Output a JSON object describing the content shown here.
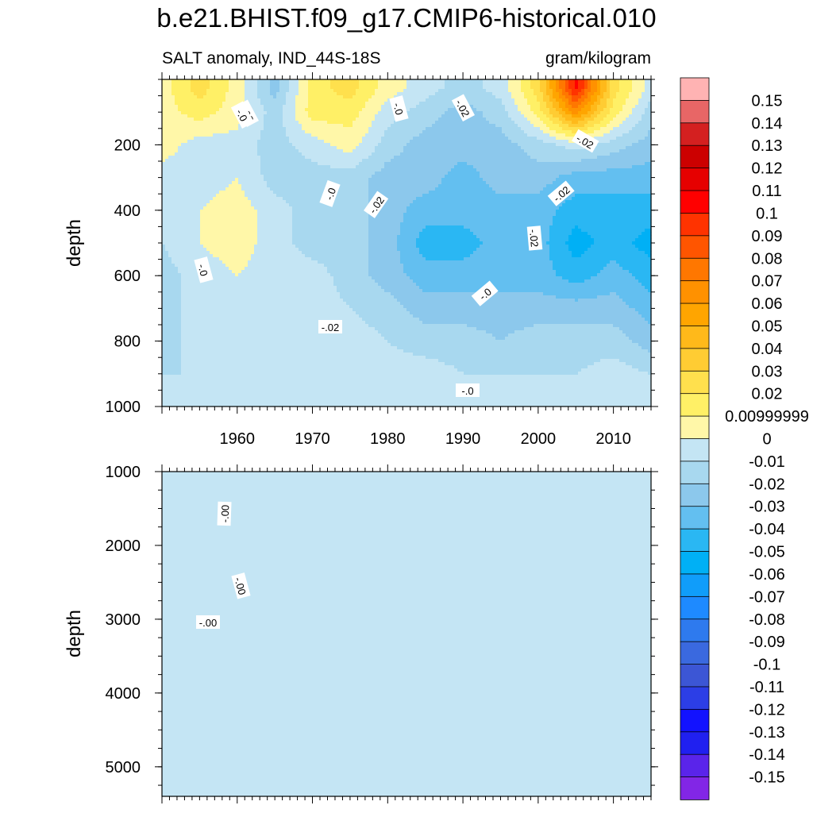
{
  "header": {
    "title": "b.e21.BHIST.f09_g17.CMIP6-historical.010",
    "subtitle_left": "SALT anomaly, IND_44S-18S",
    "subtitle_right": "gram/kilogram"
  },
  "chart_data": [
    {
      "type": "heatmap",
      "panel": "upper",
      "ylabel": "depth",
      "xlim": [
        1950,
        2015
      ],
      "ylim": [
        0,
        1000
      ],
      "y_inverted": true,
      "x_tick_labels": [
        "1960",
        "1970",
        "1980",
        "1990",
        "2000",
        "2010"
      ],
      "y_tick_labels": [
        "200",
        "400",
        "600",
        "800",
        "1000"
      ],
      "x": [
        1950,
        1955,
        1960,
        1965,
        1970,
        1975,
        1980,
        1985,
        1990,
        1995,
        2000,
        2005,
        2010,
        2015
      ],
      "y": [
        25,
        100,
        200,
        300,
        400,
        500,
        600,
        700,
        800,
        900,
        1000
      ],
      "values": [
        [
          0.01,
          0.03,
          0.01,
          -0.02,
          0.02,
          0.03,
          0.01,
          0.0,
          -0.01,
          0.0,
          0.03,
          0.11,
          0.03,
          0.0
        ],
        [
          0.01,
          0.02,
          0.01,
          -0.01,
          0.02,
          0.02,
          0.0,
          -0.01,
          -0.02,
          -0.01,
          0.02,
          0.07,
          0.02,
          -0.01
        ],
        [
          0.01,
          0.0,
          0.0,
          -0.01,
          0.0,
          0.01,
          -0.01,
          -0.02,
          -0.02,
          -0.02,
          -0.01,
          0.0,
          -0.01,
          -0.02
        ],
        [
          0.0,
          0.0,
          0.005,
          -0.01,
          -0.01,
          -0.01,
          -0.02,
          -0.02,
          -0.03,
          -0.02,
          -0.02,
          -0.03,
          -0.03,
          -0.03
        ],
        [
          -0.005,
          0.005,
          0.01,
          0.0,
          -0.01,
          -0.01,
          -0.02,
          -0.03,
          -0.03,
          -0.03,
          -0.03,
          -0.04,
          -0.04,
          -0.04
        ],
        [
          -0.005,
          0.005,
          0.01,
          0.0,
          -0.01,
          -0.01,
          -0.02,
          -0.04,
          -0.04,
          -0.03,
          -0.03,
          -0.05,
          -0.04,
          -0.05
        ],
        [
          -0.01,
          0.0,
          0.005,
          0.0,
          0.0,
          -0.01,
          -0.02,
          -0.03,
          -0.03,
          -0.03,
          -0.03,
          -0.04,
          -0.03,
          -0.04
        ],
        [
          -0.01,
          0.0,
          0.0,
          0.0,
          0.0,
          -0.005,
          -0.01,
          -0.02,
          -0.02,
          -0.02,
          -0.02,
          -0.02,
          -0.02,
          -0.03
        ],
        [
          -0.01,
          0.0,
          0.0,
          0.0,
          0.0,
          0.0,
          -0.005,
          -0.01,
          -0.01,
          -0.015,
          -0.01,
          -0.01,
          -0.01,
          -0.02
        ],
        [
          -0.005,
          -0.005,
          0.0,
          0.0,
          0.0,
          0.0,
          0.0,
          0.0,
          -0.005,
          -0.005,
          -0.005,
          -0.005,
          0.0,
          -0.005
        ],
        [
          -0.005,
          -0.005,
          -0.005,
          0.0,
          0.0,
          0.0,
          0.0,
          0.0,
          0.0,
          0.0,
          0.0,
          0.0,
          0.0,
          0.0
        ]
      ],
      "contour_labels": [
        "-.02",
        "-.0",
        "-.02",
        "-.0",
        "-.02",
        "-.0",
        "-.02",
        "-.02",
        "-.0",
        "-.02",
        "-.02",
        "-.0",
        "-.0"
      ]
    },
    {
      "type": "heatmap",
      "panel": "lower",
      "ylabel": "depth",
      "xlim": [
        1950,
        2015
      ],
      "ylim": [
        1000,
        5400
      ],
      "y_inverted": true,
      "x_tick_labels": [],
      "y_tick_labels": [
        "1000",
        "2000",
        "3000",
        "4000",
        "5000"
      ],
      "x": [
        1950,
        1955,
        1960,
        1965,
        1970,
        1975,
        1980,
        1985,
        1990,
        1995,
        2000,
        2005,
        2010,
        2015
      ],
      "y": [
        1000,
        1500,
        2000,
        2500,
        3000,
        3500,
        4000,
        4500,
        5000,
        5400
      ],
      "values": [
        [
          -0.001,
          0.001,
          -0.002,
          -0.002,
          -0.001,
          0.001,
          0.001,
          0.001,
          0.001,
          0.001,
          0.001,
          0.001,
          0.001,
          0.001
        ],
        [
          -0.001,
          0.001,
          0.001,
          -0.002,
          -0.001,
          0.001,
          0.001,
          0.001,
          0.001,
          0.001,
          0.001,
          0.001,
          0.001,
          0.001
        ],
        [
          -0.001,
          0.001,
          0.001,
          -0.002,
          -0.001,
          0.001,
          0.001,
          0.001,
          0.001,
          0.001,
          0.001,
          0.001,
          0.001,
          0.001
        ],
        [
          -0.001,
          -0.001,
          0.001,
          -0.002,
          -0.001,
          0.001,
          0.001,
          0.001,
          0.001,
          0.001,
          0.001,
          0.001,
          0.001,
          0.001
        ],
        [
          -0.001,
          -0.001,
          0.001,
          0.001,
          0.001,
          0.001,
          0.001,
          0.001,
          0.001,
          0.001,
          0.001,
          0.001,
          0.001,
          0.001
        ],
        [
          -0.001,
          -0.001,
          0.001,
          0.001,
          0.001,
          0.001,
          0.001,
          0.001,
          0.001,
          0.001,
          0.001,
          0.001,
          0.001,
          0.001
        ],
        [
          -0.001,
          -0.001,
          0.001,
          0.001,
          0.001,
          0.001,
          0.001,
          0.001,
          0.001,
          0.001,
          0.001,
          0.001,
          0.001,
          0.001
        ],
        [
          -0.001,
          -0.001,
          0.001,
          0.001,
          0.001,
          0.001,
          0.001,
          0.001,
          0.001,
          0.001,
          0.001,
          0.001,
          0.001,
          0.001
        ],
        [
          -0.001,
          -0.001,
          0.001,
          0.001,
          0.001,
          0.001,
          0.001,
          0.001,
          0.001,
          0.001,
          0.001,
          0.001,
          0.001,
          0.001
        ],
        [
          -0.001,
          -0.001,
          0.001,
          0.001,
          0.001,
          0.001,
          0.001,
          0.001,
          0.001,
          0.001,
          0.001,
          0.001,
          0.001,
          0.001
        ]
      ],
      "contour_labels": [
        "-.00",
        "-.00",
        "-.00"
      ]
    }
  ],
  "colorbar": {
    "labels": [
      "0.15",
      "0.14",
      "0.13",
      "0.12",
      "0.11",
      "0.1",
      "0.09",
      "0.08",
      "0.07",
      "0.06",
      "0.05",
      "0.04",
      "0.03",
      "0.02",
      "0.00999999",
      "0",
      "-0.01",
      "-0.02",
      "-0.03",
      "-0.04",
      "-0.05",
      "-0.06",
      "-0.07",
      "-0.08",
      "-0.09",
      "-0.1",
      "-0.11",
      "-0.12",
      "-0.13",
      "-0.14",
      "-0.15"
    ],
    "colors": [
      "#ffb3b3",
      "#e86666",
      "#d42020",
      "#cc0000",
      "#e60000",
      "#ff0000",
      "#ff3300",
      "#ff5500",
      "#ff7700",
      "#ff9100",
      "#ffa500",
      "#ffb91a",
      "#ffcc33",
      "#ffe04d",
      "#fff066",
      "#fff7a8",
      "#c4e5f4",
      "#a8d8ef",
      "#8cc8ec",
      "#63bff0",
      "#2ab7f3",
      "#00b0f5",
      "#109dfa",
      "#1e8aff",
      "#2e7aee",
      "#3a69df",
      "#3c56d5",
      "#2c3ee6",
      "#1212ff",
      "#2020f0",
      "#5a24ea",
      "#8226e6"
    ],
    "level_min": -0.155,
    "level_step": 0.01
  }
}
